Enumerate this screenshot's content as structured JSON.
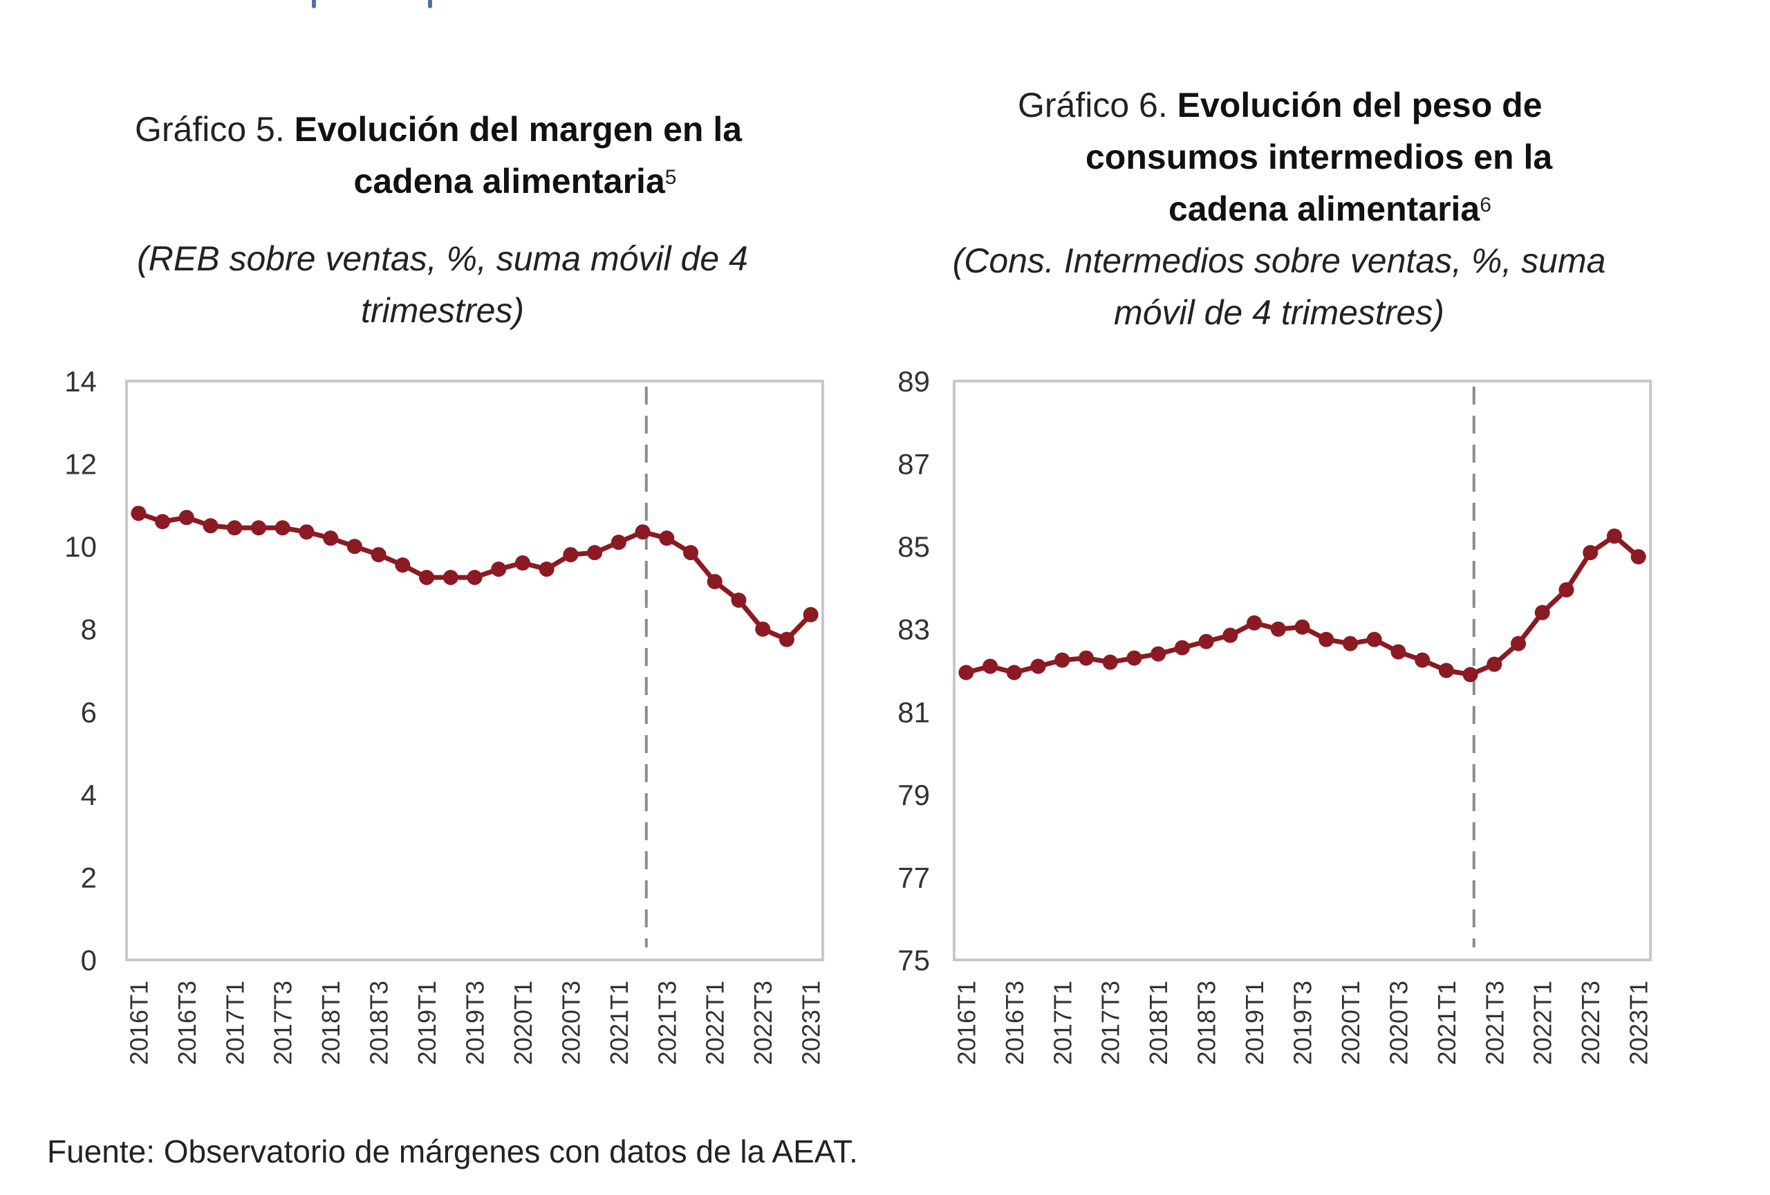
{
  "page": {
    "footer": "Fuente: Observatorio de márgenes con datos de la AEAT."
  },
  "chart_data": [
    {
      "type": "line",
      "title_prefix": "Gráfico 5. ",
      "title_bold_line1": "Evolución del margen en la",
      "title_bold_line2": "cadena alimentaria",
      "title_footnote": "5",
      "subtitle_line1": "(REB sobre ventas, %, suma móvil de 4",
      "subtitle_line2": "trimestres)",
      "xlabel": "",
      "ylabel": "",
      "ylim": [
        0,
        14
      ],
      "yticks": [
        "0",
        "2",
        "4",
        "6",
        "8",
        "10",
        "12",
        "14"
      ],
      "ytick_values": [
        0,
        2,
        4,
        6,
        8,
        10,
        12,
        14
      ],
      "x": [
        "2016T1",
        "2016T2",
        "2016T3",
        "2016T4",
        "2017T1",
        "2017T2",
        "2017T3",
        "2017T4",
        "2018T1",
        "2018T2",
        "2018T3",
        "2018T4",
        "2019T1",
        "2019T2",
        "2019T3",
        "2019T4",
        "2020T1",
        "2020T2",
        "2020T3",
        "2020T4",
        "2021T1",
        "2021T2",
        "2021T3",
        "2021T4",
        "2022T1",
        "2022T2",
        "2022T3",
        "2022T4",
        "2023T1"
      ],
      "xtick_labels": [
        "2016T1",
        "2016T3",
        "2017T1",
        "2017T3",
        "2018T1",
        "2018T3",
        "2019T1",
        "2019T3",
        "2020T1",
        "2020T3",
        "2021T1",
        "2021T3",
        "2022T1",
        "2022T3",
        "2023T1"
      ],
      "series": [
        {
          "name": "REB sobre ventas",
          "color": "#8b1a22",
          "values": [
            10.8,
            10.6,
            10.7,
            10.5,
            10.45,
            10.45,
            10.45,
            10.35,
            10.2,
            10.0,
            9.8,
            9.55,
            9.25,
            9.25,
            9.25,
            9.45,
            9.6,
            9.45,
            9.8,
            9.85,
            10.1,
            10.35,
            10.2,
            9.85,
            9.15,
            8.7,
            8.0,
            7.75,
            8.35
          ]
        }
      ],
      "vline_after": "2021T2",
      "vline_color": "#8c8c8c",
      "grid": false,
      "legend": "none"
    },
    {
      "type": "line",
      "title_prefix": "Gráfico 6. ",
      "title_bold_line1": "Evolución del peso de",
      "title_bold_line2": "consumos intermedios en la",
      "title_bold_line3": "cadena alimentaria",
      "title_footnote": "6",
      "subtitle_line1": "(Cons. Intermedios sobre ventas, %, suma",
      "subtitle_line2": "móvil de 4 trimestres)",
      "xlabel": "",
      "ylabel": "",
      "ylim": [
        75,
        89
      ],
      "yticks": [
        "75",
        "77",
        "79",
        "81",
        "83",
        "85",
        "87",
        "89"
      ],
      "ytick_values": [
        75,
        77,
        79,
        81,
        83,
        85,
        87,
        89
      ],
      "x": [
        "2016T1",
        "2016T2",
        "2016T3",
        "2016T4",
        "2017T1",
        "2017T2",
        "2017T3",
        "2017T4",
        "2018T1",
        "2018T2",
        "2018T3",
        "2018T4",
        "2019T1",
        "2019T2",
        "2019T3",
        "2019T4",
        "2020T1",
        "2020T2",
        "2020T3",
        "2020T4",
        "2021T1",
        "2021T2",
        "2021T3",
        "2021T4",
        "2022T1",
        "2022T2",
        "2022T3",
        "2022T4",
        "2023T1"
      ],
      "xtick_labels": [
        "2016T1",
        "2016T3",
        "2017T1",
        "2017T3",
        "2018T1",
        "2018T3",
        "2019T1",
        "2019T3",
        "2020T1",
        "2020T3",
        "2021T1",
        "2021T3",
        "2022T1",
        "2022T3",
        "2023T1"
      ],
      "series": [
        {
          "name": "Cons. Intermedios sobre ventas",
          "color": "#8b1a22",
          "values": [
            81.95,
            82.1,
            81.95,
            82.1,
            82.25,
            82.3,
            82.2,
            82.3,
            82.4,
            82.55,
            82.7,
            82.85,
            83.15,
            83.0,
            83.05,
            82.75,
            82.65,
            82.75,
            82.45,
            82.25,
            82.0,
            81.9,
            82.15,
            82.65,
            83.4,
            83.95,
            84.85,
            85.25,
            84.75
          ]
        }
      ],
      "vline_after": "2021T2",
      "vline_color": "#8c8c8c",
      "grid": false,
      "legend": "none"
    }
  ]
}
